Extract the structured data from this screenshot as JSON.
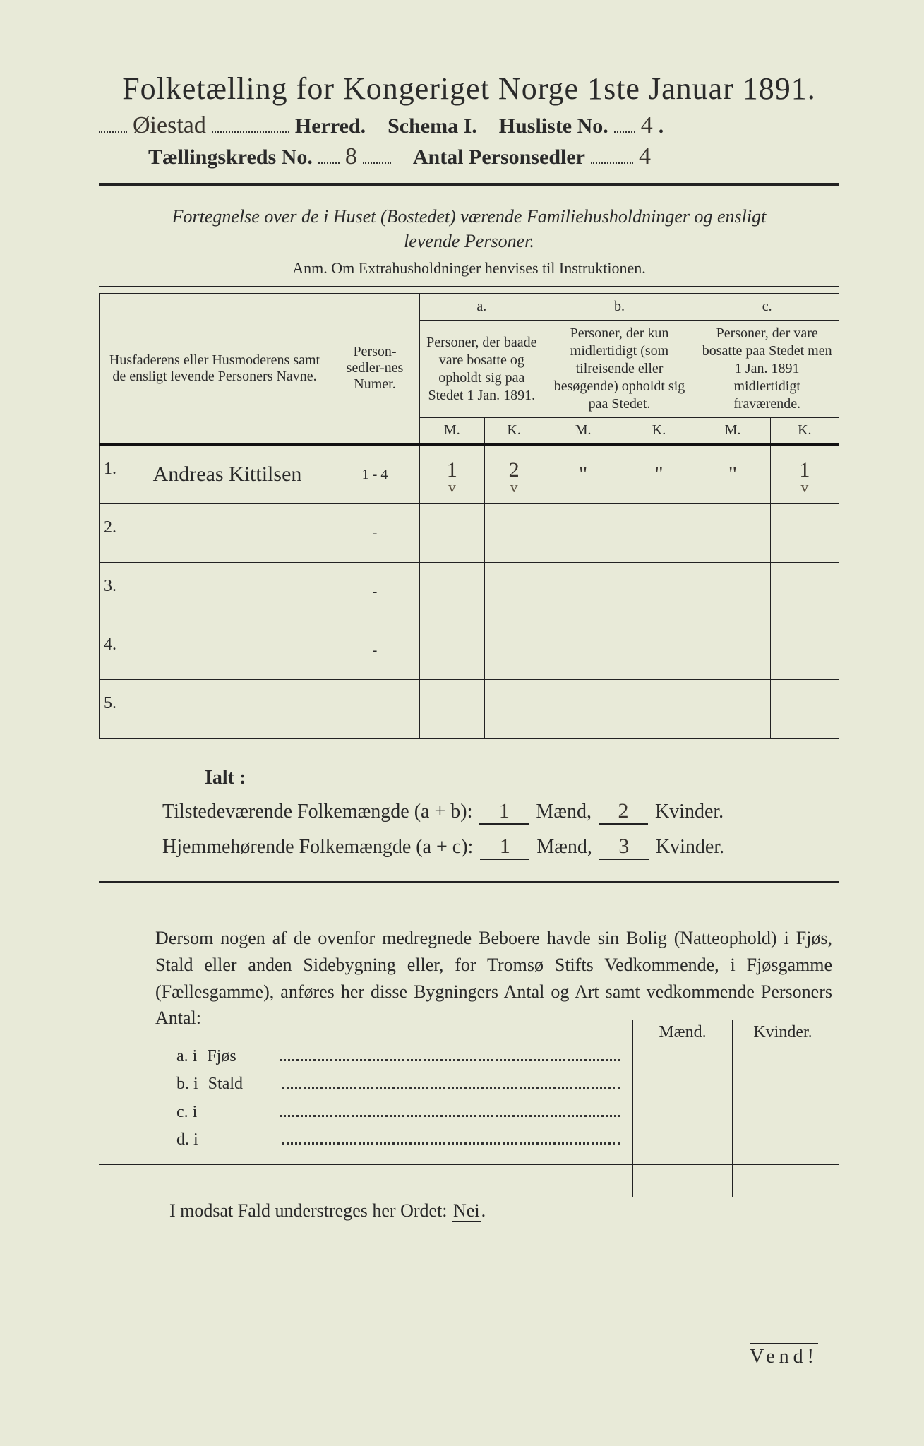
{
  "title": "Folketælling for Kongeriget Norge 1ste Januar 1891.",
  "header": {
    "herred_value": "Øiestad",
    "herred_label": "Herred.",
    "schema_label": "Schema I.",
    "husliste_label": "Husliste No.",
    "husliste_value": "4",
    "kreds_label": "Tællingskreds No.",
    "kreds_value": "8",
    "antal_label": "Antal Personsedler",
    "antal_value": "4"
  },
  "desc_line1": "Fortegnelse over de i Huset (Bostedet) værende Familiehusholdninger og ensligt",
  "desc_line2": "levende Personer.",
  "anm": "Anm.  Om Extrahusholdninger henvises til Instruktionen.",
  "table": {
    "col_name": "Husfaderens eller Husmoderens samt de ensligt levende Personers Navne.",
    "col_num": "Person-sedler-nes Numer.",
    "grp_a_tag": "a.",
    "grp_a": "Personer, der baade vare bosatte og opholdt sig paa Stedet 1 Jan. 1891.",
    "grp_b_tag": "b.",
    "grp_b": "Personer, der kun midlertidigt (som tilreisende eller besøgende) opholdt sig paa Stedet.",
    "grp_c_tag": "c.",
    "grp_c": "Personer, der vare bosatte paa Stedet men 1 Jan. 1891 midlertidigt fraværende.",
    "M": "M.",
    "K": "K.",
    "rows": [
      {
        "n": "1.",
        "name": "Andreas Kittilsen",
        "num": "1 - 4",
        "aM": "1",
        "aK": "2",
        "bM": "\"",
        "bK": "\"",
        "cM": "\"",
        "cK": "1"
      },
      {
        "n": "2.",
        "name": "",
        "num": "-",
        "aM": "",
        "aK": "",
        "bM": "",
        "bK": "",
        "cM": "",
        "cK": ""
      },
      {
        "n": "3.",
        "name": "",
        "num": "-",
        "aM": "",
        "aK": "",
        "bM": "",
        "bK": "",
        "cM": "",
        "cK": ""
      },
      {
        "n": "4.",
        "name": "",
        "num": "-",
        "aM": "",
        "aK": "",
        "bM": "",
        "bK": "",
        "cM": "",
        "cK": ""
      },
      {
        "n": "5.",
        "name": "",
        "num": "",
        "aM": "",
        "aK": "",
        "bM": "",
        "bK": "",
        "cM": "",
        "cK": ""
      }
    ],
    "checks": {
      "aM": "v",
      "aK": "v",
      "cK": "v"
    }
  },
  "totals": {
    "ialt": "Ialt :",
    "line1_label": "Tilstedeværende Folkemængde (a + b):",
    "line1_m": "1",
    "line1_k": "2",
    "line2_label": "Hjemmehørende Folkemængde (a + c):",
    "line2_m": "1",
    "line2_k": "3",
    "maend": "Mænd,",
    "kvinder": "Kvinder."
  },
  "para": "Dersom nogen af de ovenfor medregnede Beboere havde sin Bolig (Natteophold) i Fjøs, Stald eller anden Sidebygning eller, for Tromsø Stifts Vedkommende, i Fjøsgamme (Fællesgamme), anføres her disse Bygningers Antal og Art samt vedkommende Personers Antal:",
  "sidebuild": {
    "maend": "Mænd.",
    "kvinder": "Kvinder.",
    "rows": [
      {
        "tag": "a.  i",
        "label": "Fjøs"
      },
      {
        "tag": "b.  i",
        "label": "Stald"
      },
      {
        "tag": "c.  i",
        "label": ""
      },
      {
        "tag": "d.  i",
        "label": ""
      }
    ]
  },
  "nei_line_pre": "I modsat Fald understreges her Ordet: ",
  "nei_word": "Nei",
  "vend": "Vend!"
}
